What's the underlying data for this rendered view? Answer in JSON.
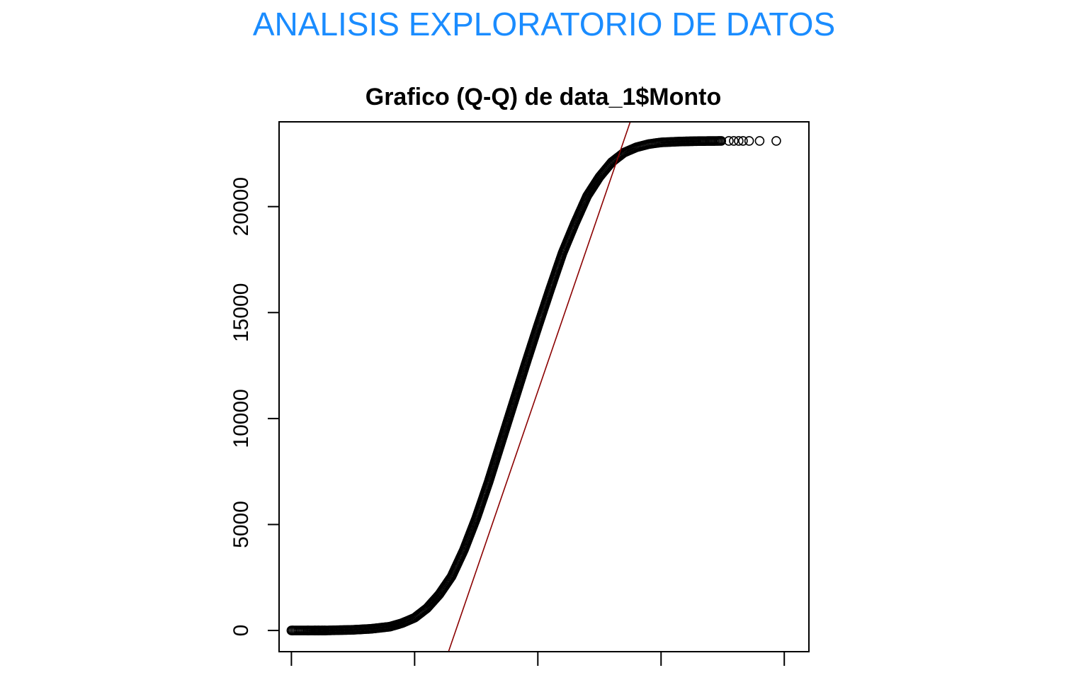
{
  "header": {
    "title": "ANALISIS EXPLORATORIO DE DATOS",
    "color": "#1a8cff"
  },
  "chart_data": {
    "type": "scatter",
    "subtype": "normal-qq",
    "title": "Grafico (Q-Q) de data_1$Monto",
    "xlabel": "",
    "ylabel": "",
    "xlim": [
      -4.2,
      4.4
    ],
    "ylim": [
      -1000,
      24000
    ],
    "x_ticks": [
      -4,
      -2,
      0,
      2,
      4
    ],
    "x_tick_labels": [
      "",
      "",
      "",
      "",
      ""
    ],
    "y_ticks": [
      0,
      5000,
      10000,
      15000,
      20000
    ],
    "y_tick_labels": [
      "0",
      "5000",
      "10000",
      "15000",
      "20000"
    ],
    "grid": false,
    "legend": "none",
    "point_style": "open-circle",
    "point_color": "#000000",
    "reference_line": {
      "color": "#8b0000",
      "points": [
        [
          -1.45,
          -1000
        ],
        [
          1.5,
          24000
        ]
      ]
    },
    "curve": [
      [
        -4.0,
        0
      ],
      [
        -3.75,
        0
      ],
      [
        -3.62,
        0
      ],
      [
        -3.55,
        0
      ],
      [
        -3.45,
        0
      ],
      [
        -3.3,
        10
      ],
      [
        -3.0,
        30
      ],
      [
        -2.7,
        80
      ],
      [
        -2.4,
        180
      ],
      [
        -2.2,
        350
      ],
      [
        -2.0,
        600
      ],
      [
        -1.8,
        1050
      ],
      [
        -1.6,
        1700
      ],
      [
        -1.4,
        2550
      ],
      [
        -1.2,
        3800
      ],
      [
        -1.0,
        5300
      ],
      [
        -0.8,
        7000
      ],
      [
        -0.6,
        8850
      ],
      [
        -0.4,
        10700
      ],
      [
        -0.2,
        12550
      ],
      [
        0.0,
        14350
      ],
      [
        0.2,
        16100
      ],
      [
        0.4,
        17800
      ],
      [
        0.6,
        19200
      ],
      [
        0.8,
        20500
      ],
      [
        1.0,
        21400
      ],
      [
        1.2,
        22100
      ],
      [
        1.4,
        22550
      ],
      [
        1.6,
        22800
      ],
      [
        1.8,
        22950
      ],
      [
        2.0,
        23030
      ],
      [
        2.3,
        23070
      ],
      [
        2.6,
        23090
      ],
      [
        3.0,
        23100
      ]
    ],
    "outliers": [
      [
        -3.98,
        0
      ],
      [
        -3.73,
        0
      ],
      [
        -3.62,
        0
      ],
      [
        -3.56,
        0
      ],
      [
        -3.5,
        0
      ],
      [
        -3.46,
        0
      ],
      [
        3.1,
        23100
      ],
      [
        3.18,
        23100
      ],
      [
        3.26,
        23100
      ],
      [
        3.33,
        23100
      ],
      [
        3.43,
        23100
      ],
      [
        3.6,
        23100
      ],
      [
        3.87,
        23100
      ]
    ]
  }
}
